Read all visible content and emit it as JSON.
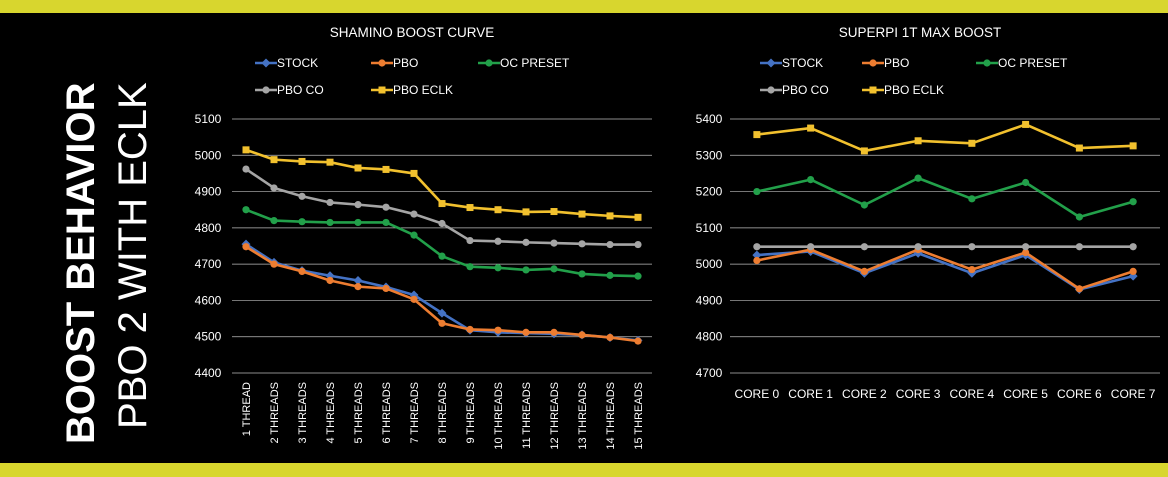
{
  "side_title": {
    "line1": "BOOST BEHAVIOR",
    "line2": "PBO 2 WITH ECLK"
  },
  "colors": {
    "stock": "#4472c4",
    "pbo": "#ed7d31",
    "oc_preset": "#22a04a",
    "pbo_co": "#a5a5a5",
    "pbo_eclk": "#f2c12e",
    "band": "#d8d62e"
  },
  "chart_data": [
    {
      "type": "line",
      "title": "SHAMINO BOOST CURVE",
      "categories": [
        "1 THREAD",
        "2 THREADS",
        "3 THREADS",
        "4 THREADS",
        "5 THREADS",
        "6 THREADS",
        "7 THREADS",
        "8 THREADS",
        "9 THREADS",
        "10 THREADS",
        "11 THREADS",
        "12 THREADS",
        "13 THREADS",
        "14 THREADS",
        "15 THREADS"
      ],
      "ylim": [
        4400,
        5100
      ],
      "yticks": [
        "5100",
        "5000",
        "4900",
        "4800",
        "4700",
        "4600",
        "4500",
        "4400"
      ],
      "grid": true,
      "legend_position": "top",
      "series": [
        {
          "name": "STOCK",
          "color": "#4472c4",
          "marker": "diamond",
          "values": [
            4755,
            4705,
            4682,
            4668,
            4655,
            4637,
            4615,
            4565,
            4518,
            4512,
            4510,
            4508,
            4505,
            4498,
            4490
          ]
        },
        {
          "name": "PBO",
          "color": "#ed7d31",
          "marker": "circle",
          "values": [
            4748,
            4700,
            4680,
            4655,
            4638,
            4633,
            4603,
            4537,
            4520,
            4518,
            4512,
            4512,
            4505,
            4498,
            4488
          ]
        },
        {
          "name": "OC PRESET",
          "color": "#22a04a",
          "marker": "circle",
          "values": [
            4850,
            4820,
            4817,
            4815,
            4815,
            4815,
            4780,
            4722,
            4693,
            4690,
            4684,
            4687,
            4673,
            4669,
            4667
          ]
        },
        {
          "name": "PBO CO",
          "color": "#a5a5a5",
          "marker": "circle",
          "values": [
            4962,
            4910,
            4887,
            4870,
            4864,
            4857,
            4838,
            4812,
            4765,
            4763,
            4760,
            4758,
            4756,
            4754,
            4754
          ]
        },
        {
          "name": "PBO ECLK",
          "color": "#f2c12e",
          "marker": "square",
          "values": [
            5015,
            4988,
            4983,
            4981,
            4965,
            4961,
            4950,
            4867,
            4856,
            4850,
            4844,
            4845,
            4838,
            4833,
            4829
          ]
        }
      ]
    },
    {
      "type": "line",
      "title": "SUPERPI 1T MAX BOOST",
      "categories": [
        "CORE 0",
        "CORE 1",
        "CORE 2",
        "CORE 3",
        "CORE 4",
        "CORE 5",
        "CORE 6",
        "CORE 7"
      ],
      "ylim": [
        4700,
        5400
      ],
      "yticks": [
        "5400",
        "5300",
        "5200",
        "5100",
        "5000",
        "4900",
        "4800",
        "4700"
      ],
      "grid": true,
      "legend_position": "top",
      "series": [
        {
          "name": "STOCK",
          "color": "#4472c4",
          "marker": "diamond",
          "values": [
            5025,
            5035,
            4975,
            5030,
            4975,
            5025,
            4930,
            4967
          ]
        },
        {
          "name": "PBO",
          "color": "#ed7d31",
          "marker": "circle",
          "values": [
            5010,
            5040,
            4980,
            5040,
            4985,
            5032,
            4932,
            4980
          ]
        },
        {
          "name": "OC PRESET",
          "color": "#22a04a",
          "marker": "circle",
          "values": [
            5200,
            5233,
            5163,
            5237,
            5180,
            5225,
            5130,
            5172
          ]
        },
        {
          "name": "PBO CO",
          "color": "#a5a5a5",
          "marker": "circle",
          "values": [
            5048,
            5048,
            5048,
            5048,
            5048,
            5048,
            5048,
            5048
          ]
        },
        {
          "name": "PBO ECLK",
          "color": "#f2c12e",
          "marker": "square",
          "values": [
            5357,
            5375,
            5312,
            5340,
            5333,
            5385,
            5320,
            5326
          ]
        }
      ]
    }
  ]
}
